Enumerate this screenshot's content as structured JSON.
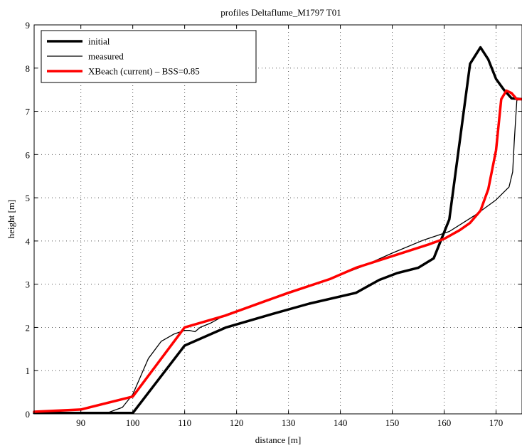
{
  "chart_data": {
    "type": "line",
    "title": "profiles Deltaflume_M1797 T01",
    "xlabel": "distance [m]",
    "ylabel": "height [m]",
    "xlim": [
      81,
      175
    ],
    "ylim": [
      0,
      9
    ],
    "xticks": [
      90,
      100,
      110,
      120,
      130,
      140,
      150,
      160,
      170
    ],
    "yticks": [
      0,
      1,
      2,
      3,
      4,
      5,
      6,
      7,
      8,
      9
    ],
    "grid": true,
    "legend_position": "top-left",
    "series": [
      {
        "name": "initial",
        "color": "#000000",
        "style": "thick",
        "x": [
          81,
          95,
          100,
          110,
          118,
          126,
          134,
          143,
          147.5,
          151,
          155,
          158,
          161,
          165,
          167,
          168.5,
          170,
          171.5,
          173,
          175
        ],
        "y": [
          0.02,
          0.02,
          0.02,
          1.58,
          2.0,
          2.28,
          2.55,
          2.8,
          3.1,
          3.26,
          3.38,
          3.6,
          4.5,
          8.1,
          8.48,
          8.2,
          7.75,
          7.5,
          7.3,
          7.28
        ]
      },
      {
        "name": "measured",
        "color": "#000000",
        "style": "thin",
        "x": [
          81,
          95,
          98,
          100,
          103,
          105.5,
          108,
          110,
          111,
          112,
          113,
          115,
          118,
          125,
          130,
          137,
          144,
          150,
          156,
          161,
          166,
          170,
          172.5,
          173.2,
          173.5,
          174,
          174.3,
          175
        ],
        "y": [
          0.02,
          0.02,
          0.15,
          0.45,
          1.28,
          1.68,
          1.85,
          1.93,
          1.93,
          1.9,
          2.0,
          2.1,
          2.3,
          2.6,
          2.82,
          3.08,
          3.4,
          3.72,
          4.02,
          4.22,
          4.6,
          4.95,
          5.25,
          5.6,
          6.3,
          7.25,
          7.28,
          7.28
        ]
      },
      {
        "name": "XBeach (current) – BSS=0.85",
        "color": "#ff0000",
        "style": "thick",
        "x": [
          81,
          90,
          100,
          110,
          118,
          126,
          130,
          138,
          143,
          150,
          157,
          160,
          163,
          165,
          167,
          168.5,
          170,
          171,
          172,
          173,
          174,
          175
        ],
        "y": [
          0.05,
          0.1,
          0.4,
          2.0,
          2.28,
          2.63,
          2.8,
          3.12,
          3.38,
          3.65,
          3.92,
          4.05,
          4.25,
          4.42,
          4.7,
          5.2,
          6.1,
          7.28,
          7.48,
          7.42,
          7.28,
          7.28
        ]
      }
    ]
  }
}
